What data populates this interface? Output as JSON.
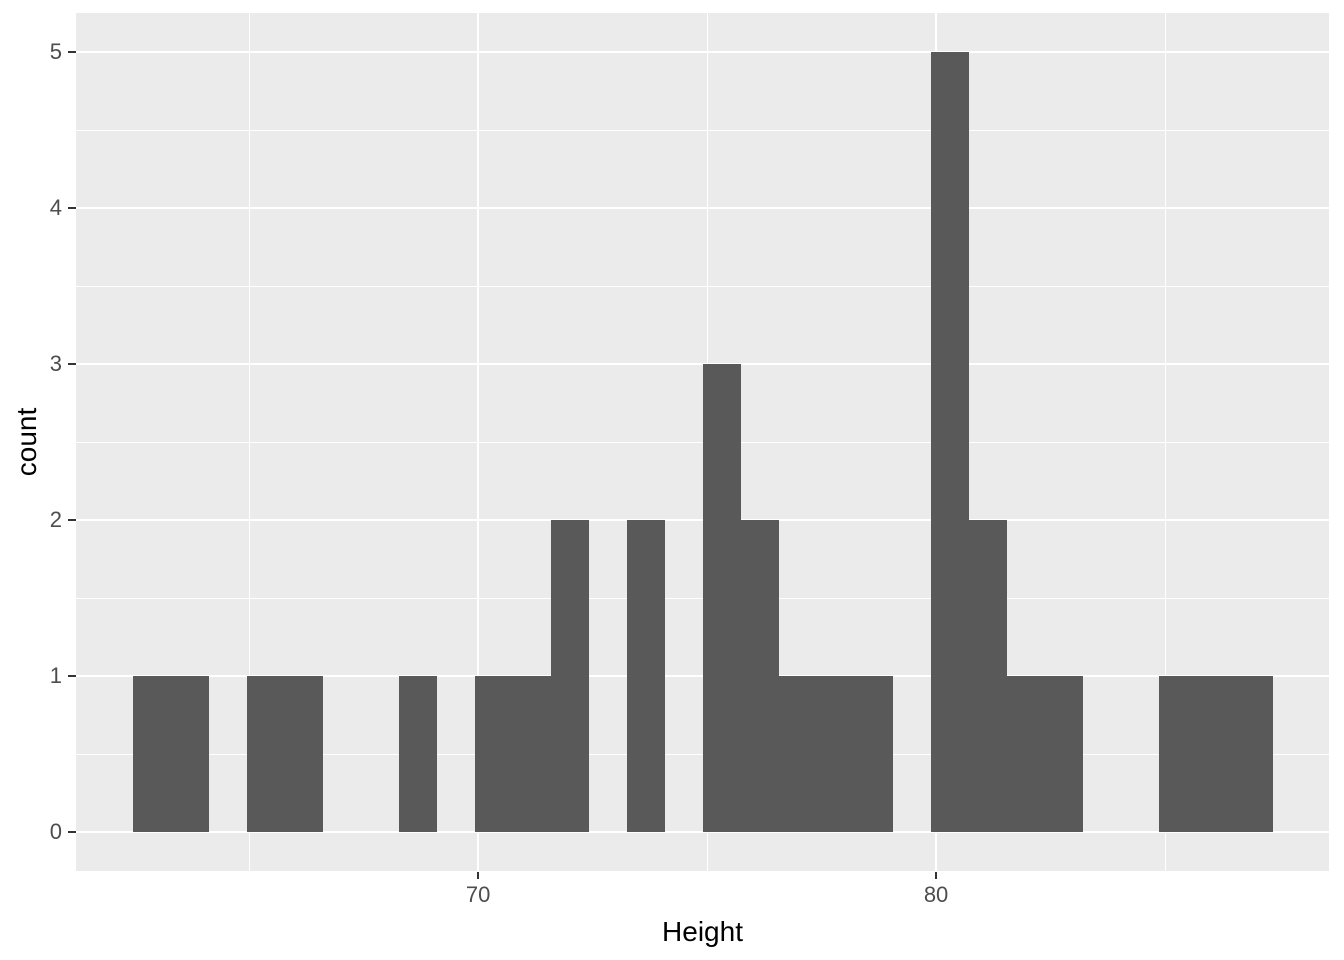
{
  "figure": {
    "background_color": "#FFFFFF",
    "panel_background_color": "#EBEBEB",
    "grid_color": "#FFFFFF",
    "bar_color": "#595959",
    "tick_mark_color": "#333333",
    "tick_label_color": "#4D4D4D",
    "axis_title_color": "#000000"
  },
  "chart_data": {
    "type": "bar",
    "subtype": "histogram",
    "title": "",
    "xlabel": "Height",
    "ylabel": "count",
    "xlim": [
      61.22,
      88.58
    ],
    "ylim": [
      -0.25,
      5.25
    ],
    "x_ticks": [
      70,
      80
    ],
    "x_tick_labels": [
      "70",
      "80"
    ],
    "y_ticks": [
      0,
      1,
      2,
      3,
      4,
      5
    ],
    "y_tick_labels": [
      "0",
      "1",
      "2",
      "3",
      "4",
      "5"
    ],
    "x_minor_ticks": [
      65,
      75,
      85
    ],
    "y_minor_ticks": [
      0.5,
      1.5,
      2.5,
      3.5,
      4.5
    ],
    "grid": true,
    "legend": "none",
    "bin_start": 62.46,
    "bin_width": 0.8297,
    "counts": [
      1,
      1,
      0,
      1,
      1,
      0,
      0,
      1,
      0,
      1,
      1,
      2,
      0,
      2,
      0,
      3,
      2,
      1,
      1,
      1,
      0,
      5,
      2,
      1,
      1,
      0,
      0,
      1,
      1,
      1
    ],
    "total_observations": 31
  }
}
